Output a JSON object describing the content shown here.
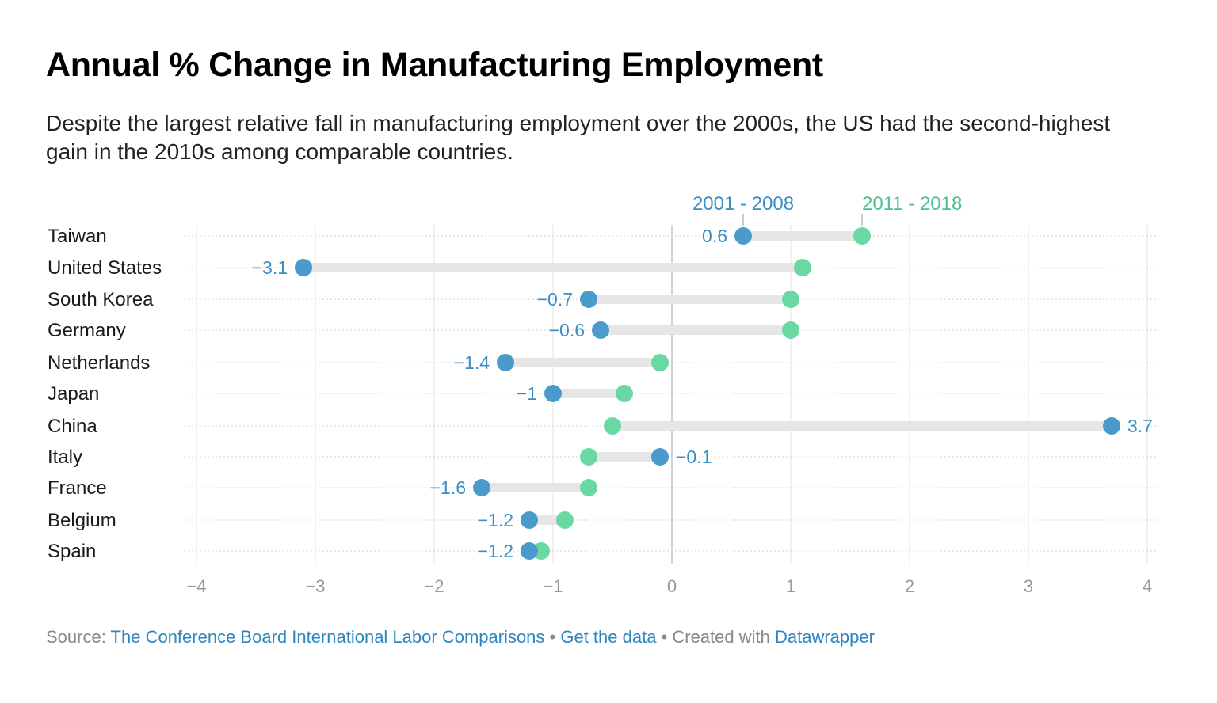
{
  "header": {
    "title": "Annual % Change in Manufacturing Employment",
    "subtitle": "Despite the largest relative fall in manufacturing employment over the 2000s, the US had the second-highest gain in the 2010s among comparable countries."
  },
  "colors": {
    "series_2001_2008": "#4a9bcb",
    "series_2011_2018": "#6ad8a2",
    "connector": "#e6e6e6",
    "label_2001_2008": "#3a8ec3",
    "label_2011_2018": "#4bc28e"
  },
  "chart_data": {
    "type": "dot-range",
    "title": "Annual % Change in Manufacturing Employment",
    "subtitle": "Despite the largest relative fall in manufacturing employment over the 2000s, the US had the second-highest gain in the 2010s among comparable countries.",
    "xlim": [
      -4,
      4
    ],
    "xticks": [
      -4,
      -3,
      -2,
      -1,
      0,
      1,
      2,
      3,
      4
    ],
    "xtick_labels": [
      "−4",
      "−3",
      "−2",
      "−1",
      "0",
      "1",
      "2",
      "3",
      "4"
    ],
    "grid": true,
    "legend_placement": "top",
    "categories": [
      "Taiwan",
      "United States",
      "South Korea",
      "Germany",
      "Netherlands",
      "Japan",
      "China",
      "Italy",
      "France",
      "Belgium",
      "Spain"
    ],
    "series": [
      {
        "name": "2001 - 2008",
        "values": [
          0.6,
          -3.1,
          -0.7,
          -0.6,
          -1.4,
          -1.0,
          3.7,
          -0.1,
          -1.6,
          -1.2,
          -1.2
        ],
        "labels": [
          "0.6",
          "−3.1",
          "−0.7",
          "−0.6",
          "−1.4",
          "−1",
          "3.7",
          "−0.1",
          "−1.6",
          "−1.2",
          "−1.2"
        ]
      },
      {
        "name": "2011 - 2018",
        "values": [
          1.6,
          1.1,
          1.0,
          1.0,
          -0.1,
          -0.4,
          -0.5,
          -0.7,
          -0.7,
          -0.9,
          -1.1
        ]
      }
    ]
  },
  "footer": {
    "source_prefix": "Source: ",
    "source_link": "The Conference Board International Labor Comparisons",
    "separator1": " • ",
    "data_link": "Get the data",
    "separator2": " • Created with ",
    "tool_link": "Datawrapper"
  }
}
